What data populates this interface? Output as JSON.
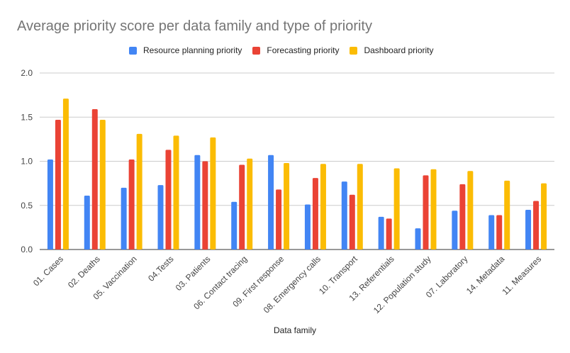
{
  "chart_data": {
    "type": "bar",
    "title": "Average priority score per data family and type of priority",
    "xlabel": "Data family",
    "ylabel": "",
    "ylim": [
      0,
      2.0
    ],
    "yticks": [
      "0.0",
      "0.5",
      "1.0",
      "1.5",
      "2.0"
    ],
    "grid": true,
    "legend_position": "top",
    "categories": [
      "01. Cases",
      "02. Deaths",
      "05. Vaccination",
      "04.Tests",
      "03. Patients",
      "06. Contact tracing",
      "09. First response",
      "08. Emergency calls",
      "10. Transport",
      "13. Referentials",
      "12. Population study",
      "07. Laboratory",
      "14. Metadata",
      "11. Measures"
    ],
    "series": [
      {
        "name": "Resource planning priority",
        "color": "#4285F4",
        "values": [
          1.02,
          0.61,
          0.7,
          0.73,
          1.07,
          0.54,
          1.07,
          0.51,
          0.77,
          0.37,
          0.24,
          0.44,
          0.39,
          0.45
        ]
      },
      {
        "name": "Forecasting priority",
        "color": "#EA4335",
        "values": [
          1.47,
          1.59,
          1.02,
          1.13,
          1.0,
          0.96,
          0.68,
          0.81,
          0.62,
          0.35,
          0.84,
          0.74,
          0.39,
          0.55
        ]
      },
      {
        "name": "Dashboard priority",
        "color": "#FBBC04",
        "values": [
          1.71,
          1.47,
          1.31,
          1.29,
          1.27,
          1.03,
          0.98,
          0.97,
          0.97,
          0.92,
          0.91,
          0.89,
          0.78,
          0.75
        ]
      }
    ]
  }
}
